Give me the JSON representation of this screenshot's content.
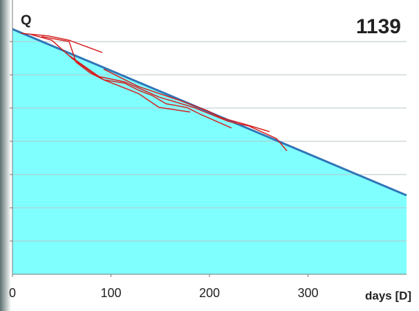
{
  "chart_data": {
    "type": "line",
    "title": "1139",
    "y_label": "Q",
    "x_label": "days [D]",
    "xlim": [
      0,
      400
    ],
    "xticks": [
      0,
      100,
      200,
      300
    ],
    "ylim": [
      0,
      8.25
    ],
    "yticks": [
      1,
      2,
      3,
      4,
      5,
      6,
      7
    ],
    "grid": true,
    "series": [
      {
        "color": "#2e75b6",
        "fill": "#80ffff",
        "x": [
          0,
          400
        ],
        "values": [
          7.375,
          2.375
        ]
      },
      {
        "color": "#d42020",
        "x": [
          8.4,
          36.5,
          57.5,
          91.2
        ],
        "values": [
          7.25,
          7.17,
          7.04,
          6.67
        ]
      },
      {
        "color": "#d42020",
        "x": [
          19.0,
          39.9,
          61.0,
          85.6,
          113.7,
          148.8,
          183.9,
          218.9,
          240.0,
          268.1,
          278.6
        ],
        "values": [
          7.21,
          7.04,
          6.48,
          5.96,
          5.79,
          5.33,
          5.02,
          4.6,
          4.46,
          4.08,
          3.71
        ]
      },
      {
        "color": "#d42020",
        "x": [
          29.5,
          57.5,
          64.6,
          78.6,
          92.6,
          113.7,
          127.7,
          141.7,
          155.8,
          176.8,
          190.9,
          222.4
        ],
        "values": [
          7.15,
          7.0,
          6.38,
          6.06,
          5.85,
          5.75,
          5.54,
          5.38,
          5.13,
          5.02,
          4.81,
          4.4
        ]
      },
      {
        "color": "#d42020",
        "x": [
          57.5,
          92.6,
          127.7,
          148.8,
          180.4
        ],
        "values": [
          6.58,
          5.85,
          5.44,
          5.02,
          4.88
        ]
      },
      {
        "color": "#d42020",
        "x": [
          92.6,
          127.7,
          169.8,
          197.9,
          211.9,
          232.9,
          261.0
        ],
        "values": [
          6.17,
          5.65,
          5.23,
          4.92,
          4.71,
          4.54,
          4.29
        ]
      }
    ]
  }
}
